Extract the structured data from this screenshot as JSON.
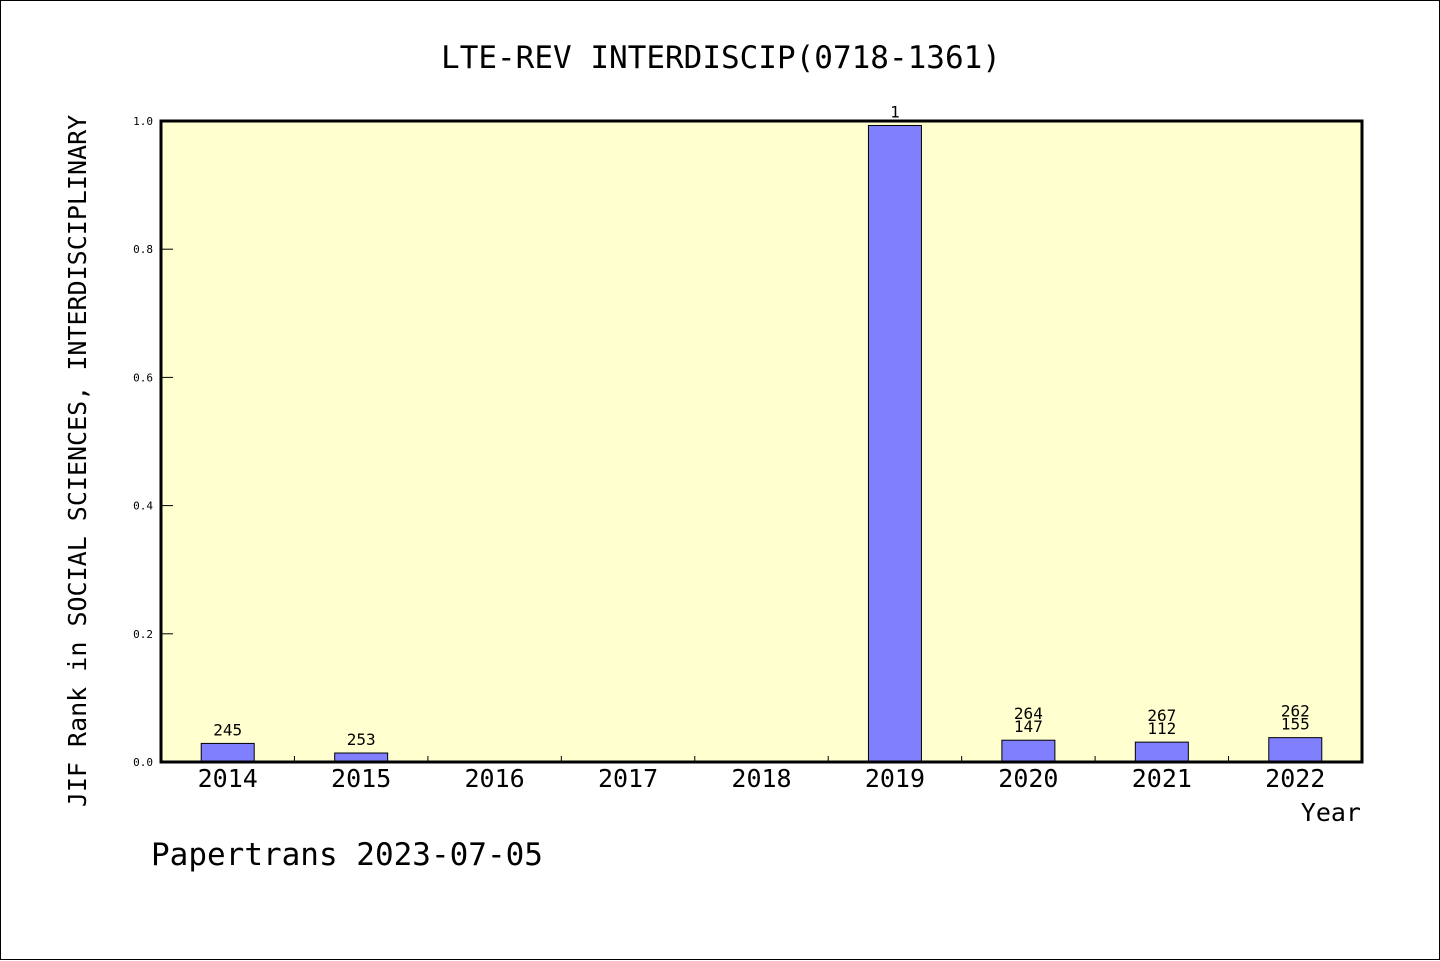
{
  "chart_data": {
    "type": "bar",
    "title": "LTE-REV INTERDISCIP(0718-1361)",
    "xlabel": "Year",
    "ylabel": "JIF Rank in SOCIAL SCIENCES, INTERDISCIPLINARY",
    "ylim": [
      0,
      1.0
    ],
    "yticks": [
      "0.0",
      "0.2",
      "0.4",
      "0.6",
      "0.8",
      "1.0"
    ],
    "categories": [
      "2014",
      "2015",
      "2016",
      "2017",
      "2018",
      "2019",
      "2020",
      "2021",
      "2022"
    ],
    "values": [
      0.029,
      0.014,
      null,
      null,
      null,
      0.993,
      0.034,
      0.031,
      0.038
    ],
    "data_labels": [
      [
        "245"
      ],
      [
        "253"
      ],
      [],
      [],
      [],
      [
        "1"
      ],
      [
        "264",
        "147"
      ],
      [
        "267",
        "112"
      ],
      [
        "262",
        "155"
      ]
    ],
    "plot_background": "#ffffd0",
    "bar_color": "#8080ff",
    "grid": false,
    "legend": "none"
  },
  "footer": {
    "text": "Papertrans 2023-07-05"
  }
}
